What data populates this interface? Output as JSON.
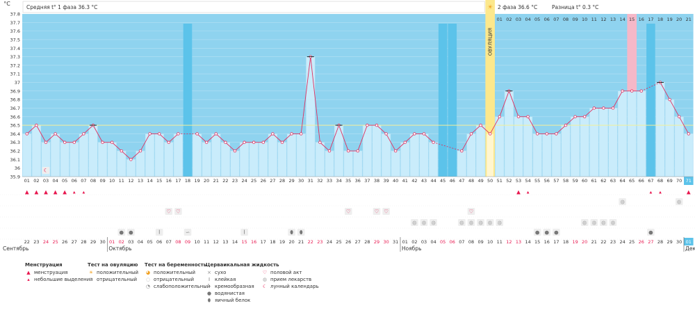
{
  "chart_data": {
    "type": "line",
    "ylabel": "°C",
    "ylim": [
      35.9,
      37.8
    ],
    "y_ticks": [
      35.9,
      36,
      36.1,
      36.2,
      36.3,
      36.4,
      36.5,
      36.6,
      36.7,
      36.8,
      36.9,
      37,
      37.1,
      37.2,
      37.3,
      37.4,
      37.5,
      37.6,
      37.7,
      37.8
    ],
    "y_tick_labels": [
      "35.9",
      "36",
      "36.1",
      "36.2",
      "36.3",
      "36.4",
      "36.5",
      "36.6",
      "36.7",
      "36.8",
      "36.9",
      "37",
      "37.1",
      "37.2",
      "37.3",
      "37.4",
      "37.5",
      "37.6",
      "37.7",
      "37.8"
    ],
    "coverline": 36.5,
    "phase1_label": "Средняя t° 1 фаза 36.3 °C",
    "phase2_label": "2 фаза 36.6 °C",
    "diff_label": "Разница t° 0.3 °C",
    "ovulation_label": "ОВУЛЯЦИЯ",
    "ovulation_day": 50,
    "cycle_days": [
      "01",
      "02",
      "03",
      "04",
      "05",
      "06",
      "07",
      "08",
      "09",
      "10",
      "11",
      "12",
      "13",
      "14",
      "15",
      "16",
      "17",
      "18",
      "19",
      "20",
      "21",
      "22",
      "23",
      "24",
      "25",
      "26",
      "27",
      "28",
      "29",
      "30",
      "31",
      "32",
      "33",
      "34",
      "35",
      "36",
      "37",
      "38",
      "39",
      "40",
      "41",
      "42",
      "43",
      "44",
      "45",
      "46",
      "47",
      "48",
      "49",
      "50",
      "51",
      "52",
      "53",
      "54",
      "55",
      "56",
      "57",
      "58",
      "59",
      "60",
      "61",
      "62",
      "63",
      "64",
      "65",
      "66",
      "67",
      "68",
      "69",
      "70",
      "71"
    ],
    "temperatures": [
      36.4,
      36.5,
      36.3,
      36.4,
      36.3,
      36.3,
      36.4,
      36.5,
      36.3,
      36.3,
      36.2,
      36.1,
      36.2,
      36.4,
      36.4,
      36.3,
      36.4,
      null,
      36.4,
      36.3,
      36.4,
      36.3,
      36.2,
      36.3,
      36.3,
      36.3,
      36.4,
      36.3,
      36.4,
      36.4,
      37.3,
      36.3,
      36.2,
      36.5,
      36.2,
      36.2,
      36.5,
      36.5,
      36.4,
      36.2,
      36.3,
      36.4,
      36.4,
      36.3,
      null,
      null,
      36.2,
      36.4,
      36.5,
      36.4,
      36.6,
      36.9,
      36.6,
      36.6,
      36.4,
      36.4,
      36.4,
      36.5,
      36.6,
      36.6,
      36.7,
      36.7,
      36.7,
      36.9,
      36.9,
      36.9,
      null,
      37.0,
      36.8,
      36.6,
      36.4
    ],
    "phase2_day_labels": [
      "01",
      "02",
      "03",
      "04",
      "05",
      "06",
      "07",
      "08",
      "09",
      "10",
      "11",
      "12",
      "13",
      "14",
      "15",
      "16",
      "17",
      "18",
      "19",
      "20",
      "21"
    ],
    "phase2_highlight_day": "15",
    "date_labels": [
      "22",
      "23",
      "24",
      "25",
      "26",
      "27",
      "28",
      "29",
      "30",
      "01",
      "02",
      "03",
      "04",
      "05",
      "06",
      "07",
      "08",
      "09",
      "10",
      "11",
      "12",
      "13",
      "14",
      "15",
      "16",
      "17",
      "18",
      "19",
      "20",
      "21",
      "22",
      "23",
      "24",
      "25",
      "26",
      "27",
      "28",
      "29",
      "30",
      "31",
      "01",
      "02",
      "03",
      "04",
      "05",
      "06",
      "07",
      "08",
      "09",
      "10",
      "11",
      "12",
      "13",
      "14",
      "15",
      "16",
      "17",
      "18",
      "19",
      "20",
      "21",
      "22",
      "23",
      "24",
      "25",
      "26",
      "27",
      "28",
      "29",
      "30",
      "01"
    ],
    "months": [
      {
        "label": "Сентябрь",
        "start_index": 0
      },
      {
        "label": "Октябрь",
        "start_index": 9
      },
      {
        "label": "Ноябрь",
        "start_index": 40
      },
      {
        "label": "Декабрь",
        "start_index": 70
      }
    ],
    "red_date_days": [
      3,
      4,
      10,
      11,
      17,
      18,
      24,
      25,
      31,
      32,
      38,
      39,
      45,
      46,
      52,
      53,
      59,
      60,
      66,
      67
    ],
    "gap_days": [
      18,
      45,
      46,
      67
    ],
    "markers": {
      "menstruation_heavy": [
        1,
        2,
        3,
        4,
        5,
        53,
        71
      ],
      "menstruation_light": [
        6,
        7,
        54,
        67,
        68
      ],
      "intercourse": [
        16,
        17,
        35,
        38,
        39,
        48
      ],
      "lunar": [
        3
      ],
      "medication": [
        64,
        70
      ],
      "cervical_creamy": [
        42,
        43,
        44,
        47,
        48,
        49,
        50,
        51,
        60,
        61,
        62,
        63
      ],
      "cervical_watery": [
        11,
        12,
        55,
        56,
        57,
        67
      ],
      "cervical_sticky": [
        15,
        24
      ],
      "cervical_eggwhite": [
        29,
        30
      ],
      "cervical_other": [
        18
      ]
    },
    "ovulation_test_icon": "sun-icon",
    "legend": {
      "menstruation": {
        "title": "Менструация",
        "items": [
          "менструация",
          "небольшие выделения"
        ]
      },
      "ovulation_test": {
        "title": "Тест на овуляцию",
        "items": [
          "положительный",
          "отрицательный"
        ]
      },
      "pregnancy_test": {
        "title": "Тест на беременность",
        "items": [
          "положительный",
          "отрицательный",
          "слабоположительный"
        ]
      },
      "cervical": {
        "title": "Церваикальная жидкость",
        "items": [
          "сухо",
          "клейкая",
          "кремообразная",
          "водянистая",
          "яичный белок"
        ]
      },
      "other": {
        "items": [
          "половой акт",
          "прием лекарств",
          "лунный календарь"
        ]
      }
    },
    "colors": {
      "background_blue": "#8fd3ef",
      "bar_fill": "#c9ecfb",
      "bar_gap": "#5cc3ea",
      "ovulation_band": "#fce88c",
      "ovulation_band_light": "#fff6cf",
      "highlight_pink": "#f5b8c8",
      "line_red": "#e03060",
      "coverline": "#f3ef9a",
      "red_text": "#e8174f"
    }
  }
}
